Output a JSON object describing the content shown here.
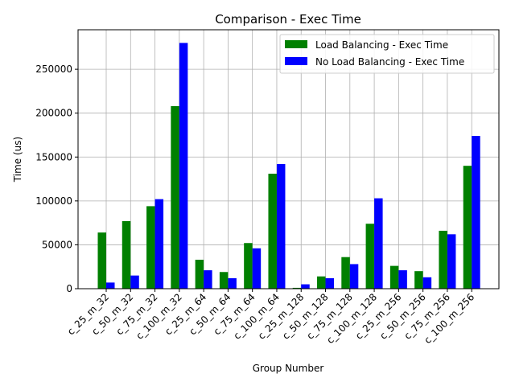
{
  "chart_data": {
    "type": "bar",
    "title": "Comparison - Exec Time",
    "xlabel": "Group Number",
    "ylabel": "Time (us)",
    "ylim": [
      0,
      295000
    ],
    "yticks": [
      0,
      50000,
      100000,
      150000,
      200000,
      250000
    ],
    "ytick_labels": [
      "0",
      "50000",
      "100000",
      "150000",
      "200000",
      "250000"
    ],
    "grid": true,
    "legend_position": "top-right",
    "categories": [
      "c_25_m_32",
      "c_50_m_32",
      "c_75_m_32",
      "c_100_m_32",
      "c_25_m_64",
      "c_50_m_64",
      "c_75_m_64",
      "c_100_m_64",
      "c_25_m_128",
      "c_50_m_128",
      "c_75_m_128",
      "c_100_m_128",
      "c_25_m_256",
      "c_50_m_256",
      "c_75_m_256",
      "c_100_m_256"
    ],
    "series": [
      {
        "name": "Load Balancing - Exec Time",
        "color": "#008000",
        "values": [
          64000,
          77000,
          94000,
          208000,
          33000,
          19000,
          52000,
          131000,
          1000,
          14000,
          36000,
          74000,
          26000,
          20000,
          66000,
          140000
        ]
      },
      {
        "name": "No Load Balancing - Exec Time",
        "color": "#0000ff",
        "values": [
          7000,
          15000,
          102000,
          280000,
          21000,
          12000,
          46000,
          142000,
          5000,
          12000,
          28000,
          103000,
          21000,
          13000,
          62000,
          174000
        ]
      }
    ]
  }
}
